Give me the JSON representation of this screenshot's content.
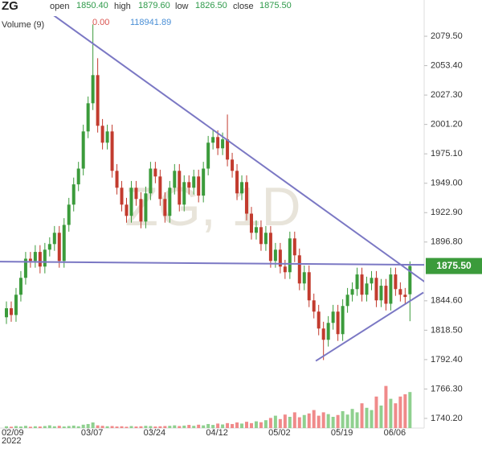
{
  "chart_data": {
    "type": "candlestick",
    "symbol": "ZG",
    "watermark": "ZG, 1D",
    "header": {
      "open_label": "open",
      "open": "1850.40",
      "high_label": "high",
      "high": "1879.60",
      "low_label": "low",
      "low": "1826.50",
      "close_label": "close",
      "close": "1875.50"
    },
    "volume_header": {
      "label": "Volume (9)",
      "change": "0.00",
      "ma": "118941.89"
    },
    "open": [
      1830,
      1838,
      1832,
      1850,
      1865,
      1882,
      1880,
      1888,
      1875,
      1890,
      1895,
      1905,
      1880,
      1912,
      1930,
      1948,
      1962,
      1995,
      2020,
      2045,
      2000,
      1985,
      1995,
      1960,
      1945,
      1930,
      1920,
      1945,
      1935,
      1915,
      1940,
      1962,
      1955,
      1935,
      1920,
      1945,
      1960,
      1930,
      1950,
      1945,
      1955,
      1938,
      1962,
      1985,
      1990,
      1980,
      1988,
      1970,
      1960,
      1940,
      1950,
      1922,
      1905,
      1910,
      1895,
      1905,
      1880,
      1890,
      1875,
      1870,
      1900,
      1885,
      1860,
      1870,
      1845,
      1835,
      1820,
      1810,
      1825,
      1835,
      1815,
      1840,
      1850,
      1855,
      1868,
      1850,
      1860,
      1865,
      1845,
      1858,
      1842,
      1868,
      1855,
      1850,
      1850.4
    ],
    "high": [
      1844,
      1844,
      1856,
      1871,
      1888,
      1888,
      1894,
      1894,
      1896,
      1901,
      1911,
      1911,
      1918,
      1936,
      1954,
      1968,
      2001,
      2026,
      2090,
      2060,
      2006,
      2001,
      2001,
      1966,
      1951,
      1936,
      1951,
      1951,
      1941,
      1946,
      1968,
      1968,
      1961,
      1941,
      1951,
      1966,
      1966,
      1956,
      1956,
      1961,
      1961,
      1968,
      1991,
      1996,
      1996,
      1994,
      2010,
      1976,
      1966,
      1956,
      1956,
      1928,
      1916,
      1916,
      1911,
      1911,
      1896,
      1896,
      1881,
      1906,
      1906,
      1891,
      1876,
      1876,
      1851,
      1841,
      1826,
      1831,
      1841,
      1841,
      1846,
      1856,
      1861,
      1874,
      1874,
      1866,
      1871,
      1871,
      1864,
      1864,
      1874,
      1874,
      1861,
      1856,
      1879.6
    ],
    "low": [
      1824,
      1826,
      1826,
      1844,
      1859,
      1874,
      1874,
      1869,
      1869,
      1884,
      1889,
      1874,
      1874,
      1906,
      1924,
      1942,
      1956,
      1989,
      2014,
      1994,
      1979,
      1979,
      1954,
      1939,
      1924,
      1914,
      1914,
      1929,
      1909,
      1909,
      1934,
      1949,
      1929,
      1914,
      1914,
      1939,
      1924,
      1924,
      1939,
      1939,
      1932,
      1932,
      1956,
      1979,
      1974,
      1974,
      1964,
      1954,
      1934,
      1934,
      1916,
      1899,
      1899,
      1889,
      1889,
      1874,
      1874,
      1869,
      1864,
      1864,
      1879,
      1854,
      1854,
      1839,
      1829,
      1814,
      1792,
      1804,
      1819,
      1809,
      1809,
      1834,
      1844,
      1849,
      1844,
      1844,
      1854,
      1839,
      1839,
      1836,
      1836,
      1849,
      1844,
      1842,
      1826.5
    ],
    "close": [
      1838,
      1832,
      1850,
      1865,
      1882,
      1880,
      1888,
      1875,
      1890,
      1895,
      1905,
      1880,
      1912,
      1930,
      1948,
      1962,
      1995,
      2020,
      2045,
      2000,
      1985,
      1995,
      1960,
      1945,
      1930,
      1920,
      1945,
      1935,
      1915,
      1940,
      1962,
      1955,
      1935,
      1920,
      1945,
      1960,
      1930,
      1950,
      1945,
      1955,
      1938,
      1962,
      1985,
      1990,
      1980,
      1988,
      1970,
      1960,
      1940,
      1950,
      1922,
      1905,
      1910,
      1895,
      1905,
      1880,
      1890,
      1875,
      1870,
      1900,
      1885,
      1860,
      1870,
      1845,
      1835,
      1820,
      1810,
      1825,
      1835,
      1815,
      1840,
      1850,
      1855,
      1868,
      1850,
      1860,
      1865,
      1845,
      1858,
      1842,
      1868,
      1855,
      1850,
      1848,
      1875.5
    ],
    "volume": [
      8000,
      6000,
      9000,
      7000,
      10000,
      6000,
      8000,
      7000,
      9000,
      12000,
      8000,
      10000,
      7000,
      9000,
      11000,
      8000,
      15000,
      18000,
      25000,
      12000,
      10000,
      8000,
      9000,
      7000,
      8000,
      6000,
      9000,
      7000,
      8000,
      10000,
      9000,
      7000,
      8000,
      9000,
      10000,
      12000,
      9000,
      11000,
      14000,
      10000,
      15000,
      12000,
      18000,
      14000,
      20000,
      16000,
      22000,
      18000,
      25000,
      20000,
      28000,
      22000,
      30000,
      26000,
      35000,
      45000,
      55000,
      40000,
      60000,
      50000,
      70000,
      48000,
      58000,
      65000,
      80000,
      55000,
      70000,
      62000,
      50000,
      58000,
      75000,
      60000,
      85000,
      70000,
      110000,
      90000,
      80000,
      140000,
      100000,
      187000,
      130000,
      110000,
      140000,
      150000,
      160000
    ],
    "up_color": "#3b9b3b",
    "down_color": "#c23b2e",
    "up_volume_color": "#8fd08f",
    "down_volume_color": "#f08a8a",
    "ylim": [
      1731.6,
      2097.4
    ],
    "vlim": [
      0,
      200000
    ],
    "yticks": [
      {
        "value": 2079.5,
        "label": "2079.50"
      },
      {
        "value": 2053.4,
        "label": "2053.40"
      },
      {
        "value": 2027.3,
        "label": "2027.30"
      },
      {
        "value": 2001.2,
        "label": "2001.20"
      },
      {
        "value": 1975.1,
        "label": "1975.10"
      },
      {
        "value": 1949,
        "label": "1949.00"
      },
      {
        "value": 1922.9,
        "label": "1922.90"
      },
      {
        "value": 1896.8,
        "label": "1896.80"
      },
      {
        "value": 1844.6,
        "label": "1844.60"
      },
      {
        "value": 1818.5,
        "label": "1818.50"
      },
      {
        "value": 1792.4,
        "label": "1792.40"
      },
      {
        "value": 1766.3,
        "label": "1766.30"
      },
      {
        "value": 1740.2,
        "label": "1740.20"
      }
    ],
    "xticks": [
      {
        "value": 0,
        "label": "02/09"
      },
      {
        "value": 17,
        "label": "03/07"
      },
      {
        "value": 30,
        "label": "03/24"
      },
      {
        "value": 43,
        "label": "04/12"
      },
      {
        "value": 56,
        "label": "05/02"
      },
      {
        "value": 69,
        "label": "05/19"
      },
      {
        "value": 80,
        "label": "06/06"
      }
    ],
    "year_label": "2022",
    "last_price": {
      "value": 1875.5,
      "label": "1875.50"
    },
    "trendline_color": "#7b78c4",
    "trendlines": [
      {
        "x": [
          5.35,
          87.3
        ],
        "y": [
          2111.8,
          1860.7
        ]
      },
      {
        "x": [
          -1.34,
          87.3
        ],
        "y": [
          1879.4,
          1876.5
        ]
      },
      {
        "x": [
          64.4,
          86.8
        ],
        "y": [
          1791.2,
          1852
        ]
      }
    ]
  }
}
